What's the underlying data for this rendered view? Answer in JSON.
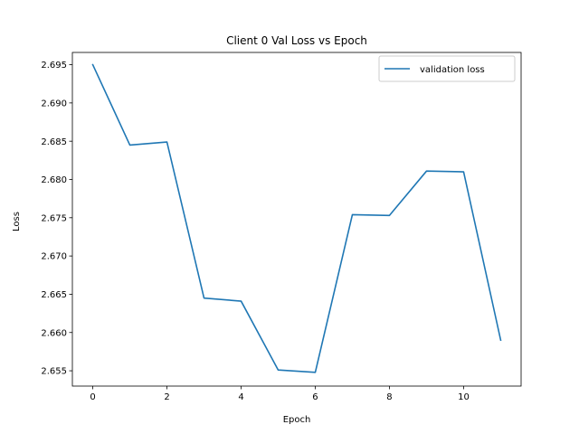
{
  "chart_data": {
    "type": "line",
    "title": "Client 0 Val Loss vs Epoch",
    "xlabel": "Epoch",
    "ylabel": "Loss",
    "xlim": [
      -0.55,
      11.55
    ],
    "ylim": [
      2.653,
      2.6966
    ],
    "xticks": [
      0,
      2,
      4,
      6,
      8,
      10
    ],
    "yticks": [
      2.655,
      2.66,
      2.665,
      2.67,
      2.675,
      2.68,
      2.685,
      2.69,
      2.695
    ],
    "ytick_labels": [
      "2.655",
      "2.660",
      "2.665",
      "2.670",
      "2.675",
      "2.680",
      "2.685",
      "2.690",
      "2.695"
    ],
    "grid": false,
    "legend_position": "top-right",
    "series": [
      {
        "name": "validation loss",
        "color": "#1f77b4",
        "x": [
          0,
          1,
          2,
          3,
          4,
          5,
          6,
          7,
          8,
          9,
          10,
          11
        ],
        "values": [
          2.695,
          2.6845,
          2.6849,
          2.6645,
          2.6641,
          2.6551,
          2.6548,
          2.6754,
          2.6753,
          2.6811,
          2.681,
          2.659
        ]
      }
    ]
  }
}
